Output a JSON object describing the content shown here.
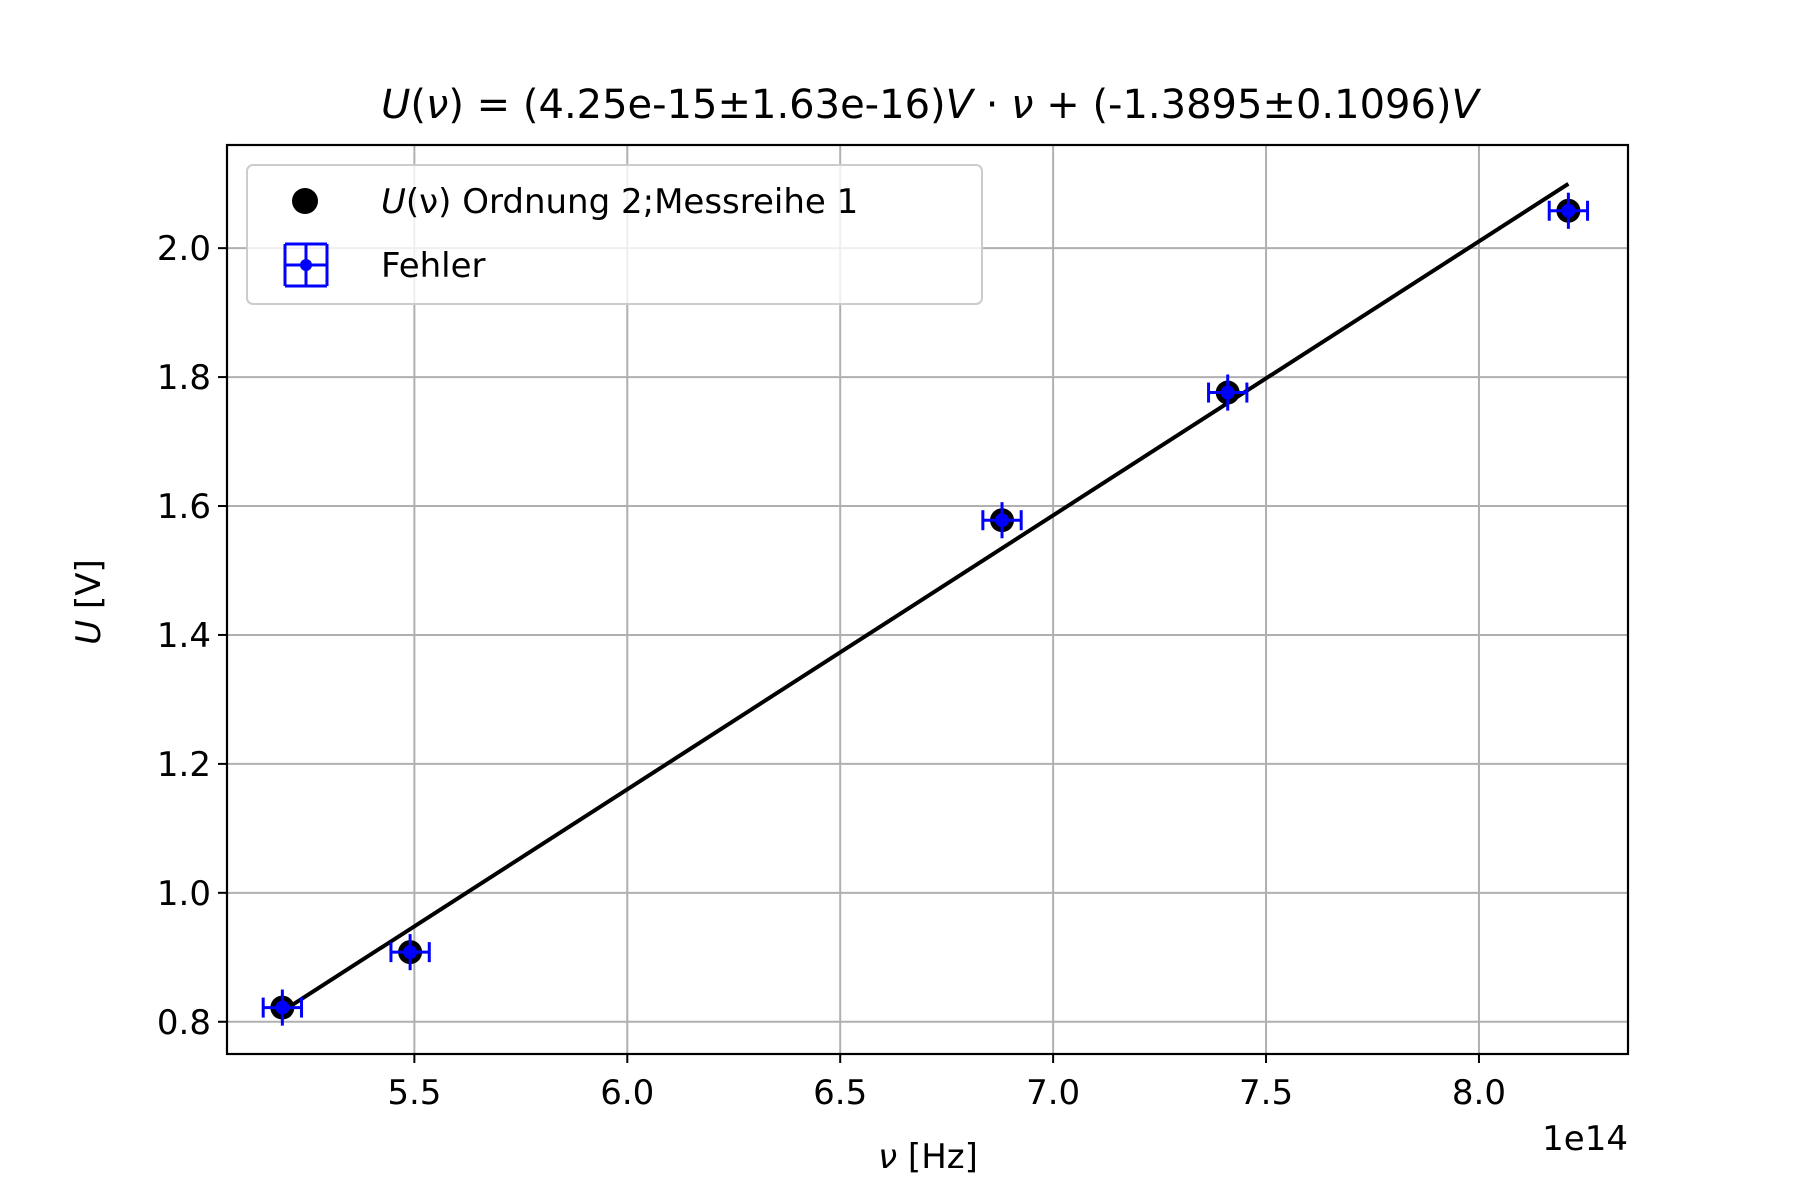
{
  "chart_data": {
    "type": "scatter",
    "title": {
      "prefix_italic": "U",
      "paren_open": "(",
      "nu": "ν",
      "paren_close": ")",
      "body1": " = (4.25e-15±1.63e-16)",
      "v1": "V",
      "dot": " · ",
      "nu2": "ν",
      "body2": " + (-1.3895±0.1096)",
      "v2": "V"
    },
    "xlabel": {
      "symbol": "ν",
      "unit": " [Hz]"
    },
    "ylabel": {
      "symbol": "U",
      "unit": " [V]"
    },
    "x_offset_label": "1e14",
    "xlim": [
      506000000000000.0,
      835000000000000.0
    ],
    "ylim": [
      0.75,
      2.16
    ],
    "xticks": [
      550000000000000.0,
      600000000000000.0,
      650000000000000.0,
      700000000000000.0,
      750000000000000.0,
      800000000000000.0
    ],
    "xtick_labels": [
      "5.5",
      "6.0",
      "6.5",
      "7.0",
      "7.5",
      "8.0"
    ],
    "yticks": [
      0.8,
      1.0,
      1.2,
      1.4,
      1.6,
      1.8,
      2.0
    ],
    "ytick_labels": [
      "0.8",
      "1.0",
      "1.2",
      "1.4",
      "1.6",
      "1.8",
      "2.0"
    ],
    "grid": true,
    "legend_position": "upper-left",
    "series": [
      {
        "name_italic": "U",
        "name_paren": "(ν)",
        "name_rest": " Ordnung 2;Messreihe 1",
        "kind": "points",
        "color": "#000000",
        "x": [
          519000000000000.0,
          549000000000000.0,
          688000000000000.0,
          741000000000000.0,
          821000000000000.0
        ],
        "y": [
          0.822,
          0.908,
          1.578,
          1.776,
          2.058
        ]
      },
      {
        "name": "Fehler",
        "kind": "errorbar",
        "color": "#0000ff",
        "x": [
          519000000000000.0,
          549000000000000.0,
          688000000000000.0,
          741000000000000.0,
          821000000000000.0
        ],
        "y": [
          0.822,
          0.908,
          1.578,
          1.776,
          2.058
        ],
        "xerr": 4500000000000.0,
        "yerr": 0.028
      },
      {
        "kind": "fit-line",
        "color": "#000000",
        "slope": 4.25e-15,
        "intercept": -1.3895,
        "x_range": [
          519000000000000.0,
          821000000000000.0
        ]
      }
    ]
  }
}
